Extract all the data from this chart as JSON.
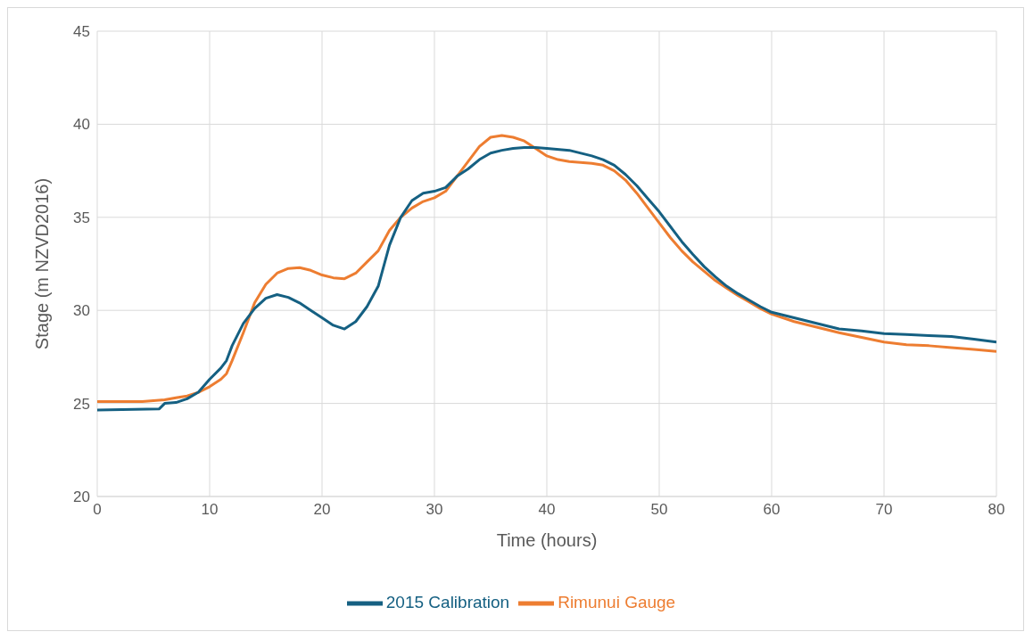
{
  "chart_data": {
    "type": "line",
    "xlabel": "Time (hours)",
    "ylabel": "Stage (m NZVD2016)",
    "xlim": [
      0,
      80
    ],
    "xticks": [
      0,
      10,
      20,
      30,
      40,
      50,
      60,
      70,
      80
    ],
    "ylim": [
      20,
      45
    ],
    "yticks": [
      20,
      25,
      30,
      35,
      40,
      45
    ],
    "grid": true,
    "legend": "bottom",
    "marker": "none",
    "line_style": "solid",
    "series": [
      {
        "name": "Rimunui Gauge",
        "color": "#ed7d31",
        "x": [
          0,
          2,
          4,
          5,
          6,
          7,
          8,
          9,
          10,
          11,
          11.5,
          12,
          13,
          14,
          15,
          16,
          17,
          18,
          19,
          20,
          21,
          22,
          23,
          24,
          25,
          26,
          27,
          28,
          29,
          30,
          31,
          32,
          33,
          34,
          35,
          36,
          37,
          38,
          39,
          40,
          41,
          42,
          43,
          44,
          45,
          46,
          47,
          48,
          49,
          50,
          51,
          52,
          53,
          54,
          55,
          56,
          57,
          58,
          59,
          60,
          62,
          64,
          66,
          68,
          70,
          72,
          74,
          76,
          78,
          80
        ],
        "values": [
          25.1,
          25.1,
          25.1,
          25.15,
          25.2,
          25.3,
          25.4,
          25.6,
          25.9,
          26.3,
          26.6,
          27.3,
          28.8,
          30.4,
          31.4,
          32.0,
          32.25,
          32.3,
          32.15,
          31.9,
          31.75,
          31.7,
          32.0,
          32.6,
          33.2,
          34.3,
          35.0,
          35.5,
          35.85,
          36.05,
          36.4,
          37.2,
          38.0,
          38.8,
          39.3,
          39.4,
          39.3,
          39.1,
          38.7,
          38.3,
          38.1,
          38.0,
          37.95,
          37.9,
          37.8,
          37.5,
          37.0,
          36.3,
          35.5,
          34.7,
          33.9,
          33.2,
          32.6,
          32.1,
          31.6,
          31.2,
          30.8,
          30.45,
          30.1,
          29.8,
          29.4,
          29.1,
          28.8,
          28.55,
          28.3,
          28.15,
          28.1,
          28.0,
          27.9,
          27.8
        ]
      },
      {
        "name": "2015 Calibration",
        "color": "#156082",
        "x": [
          0,
          5.5,
          6,
          7,
          8,
          9,
          10,
          11,
          11.5,
          12,
          13,
          14,
          15,
          16,
          17,
          18,
          19,
          20,
          21,
          22,
          23,
          24,
          25,
          26,
          27,
          28,
          29,
          30,
          31,
          32,
          33,
          34,
          35,
          36,
          37,
          38,
          39,
          40,
          42,
          44,
          45,
          46,
          47,
          48,
          49,
          50,
          51,
          52,
          53,
          54,
          55,
          56,
          57,
          58,
          59,
          60,
          62,
          64,
          66,
          68,
          70,
          72,
          74,
          76,
          78,
          80
        ],
        "values": [
          24.65,
          24.7,
          25.0,
          25.05,
          25.25,
          25.6,
          26.3,
          26.9,
          27.3,
          28.1,
          29.3,
          30.1,
          30.65,
          30.85,
          30.7,
          30.4,
          30.0,
          29.6,
          29.2,
          29.0,
          29.4,
          30.2,
          31.3,
          33.5,
          35.0,
          35.9,
          36.3,
          36.4,
          36.6,
          37.2,
          37.6,
          38.1,
          38.45,
          38.6,
          38.7,
          38.75,
          38.75,
          38.7,
          38.6,
          38.3,
          38.1,
          37.8,
          37.3,
          36.7,
          36.0,
          35.3,
          34.5,
          33.7,
          33.0,
          32.35,
          31.8,
          31.3,
          30.9,
          30.55,
          30.2,
          29.9,
          29.6,
          29.3,
          29.0,
          28.9,
          28.75,
          28.7,
          28.65,
          28.6,
          28.45,
          28.3
        ]
      }
    ]
  }
}
